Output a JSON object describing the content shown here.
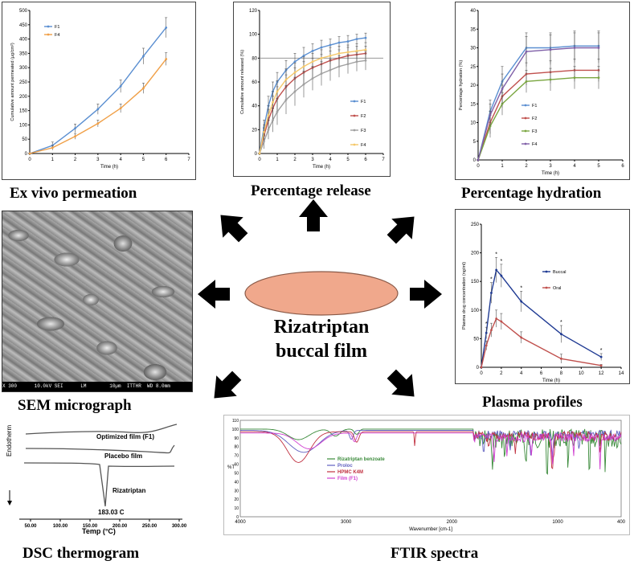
{
  "center": {
    "title_line1": "Rizatriptan",
    "title_line2": "buccal film"
  },
  "colors": {
    "arrow": "#000000",
    "ellipse_fill": "#f0a88c",
    "blue": "#5b8fd1",
    "orange": "#f0a048",
    "green": "#7aa640",
    "purple": "#8060a8",
    "red": "#c0504d",
    "gray": "#a0a0a0",
    "yellow": "#f4c86a",
    "navy": "#1f3a93",
    "magenta": "#d040d0"
  },
  "captions": {
    "ex_vivo": "Ex vivo permeation",
    "release": "Percentage release",
    "hydration": "Percentage hydration",
    "sem": "SEM micrograph",
    "plasma": "Plasma profiles",
    "dsc": "DSC thermogram",
    "ftir": "FTIR spectra"
  },
  "sem": {
    "scale_bar": "X 300      10.0kV SEI      LM        10µm  ITTHR  WD 8.0mm"
  },
  "dsc": {
    "yaxis_label": "Endotherm",
    "curve_labels": [
      "Optimized film (F1)",
      "Placebo film",
      "Rizatriptan"
    ],
    "peak_label": "183.03 C"
  },
  "chart_data": [
    {
      "type": "line",
      "id": "ex_vivo",
      "title": "",
      "xlabel": "Time (h)",
      "ylabel": "Cumulative amount permeated (µg/cm²)",
      "xlim": [
        0,
        7
      ],
      "ylim": [
        0,
        500
      ],
      "xticks": [
        0,
        1,
        2,
        3,
        4,
        5,
        6,
        7
      ],
      "yticks": [
        0,
        50,
        100,
        150,
        200,
        250,
        300,
        350,
        400,
        450,
        500
      ],
      "x": [
        0,
        1,
        2,
        3,
        4,
        5,
        6
      ],
      "series": [
        {
          "name": "F1",
          "values": [
            0,
            28,
            88,
            155,
            235,
            340,
            440
          ],
          "err": [
            0,
            12,
            15,
            18,
            22,
            28,
            35
          ],
          "color": "#5b8fd1"
        },
        {
          "name": "F4",
          "values": [
            0,
            20,
            60,
            105,
            158,
            228,
            330
          ],
          "err": [
            0,
            8,
            10,
            12,
            15,
            18,
            22
          ],
          "color": "#f0a048"
        }
      ]
    },
    {
      "type": "line",
      "id": "release",
      "title": "",
      "xlabel": "Time (h)",
      "ylabel": "Cumulative amount released (%)",
      "xlim": [
        0,
        7
      ],
      "ylim": [
        0,
        120
      ],
      "xticks": [
        0,
        1,
        2,
        3,
        4,
        5,
        6,
        7
      ],
      "yticks": [
        0,
        20,
        40,
        60,
        80,
        100,
        120
      ],
      "hline": 80,
      "x": [
        0,
        0.25,
        0.5,
        0.75,
        1,
        1.5,
        2,
        2.5,
        3,
        3.5,
        4,
        4.5,
        5,
        5.5,
        6
      ],
      "series": [
        {
          "name": "F1",
          "values": [
            0,
            22,
            40,
            52,
            60,
            70,
            77,
            82,
            86,
            89,
            91,
            93,
            94,
            96,
            97
          ],
          "err": [
            0,
            6,
            8,
            8,
            8,
            8,
            7,
            7,
            6,
            6,
            5,
            5,
            5,
            4,
            4
          ],
          "color": "#5b8fd1"
        },
        {
          "name": "F2",
          "values": [
            0,
            15,
            28,
            38,
            46,
            56,
            63,
            68,
            72,
            75,
            78,
            80,
            82,
            83,
            84
          ],
          "err": [
            0,
            6,
            9,
            10,
            10,
            10,
            9,
            9,
            8,
            8,
            8,
            7,
            7,
            7,
            6
          ],
          "color": "#c0504d"
        },
        {
          "name": "F3",
          "values": [
            0,
            10,
            20,
            28,
            35,
            45,
            52,
            58,
            63,
            67,
            70,
            73,
            75,
            77,
            78
          ],
          "err": [
            0,
            6,
            8,
            10,
            11,
            12,
            12,
            11,
            10,
            10,
            9,
            9,
            8,
            8,
            8
          ],
          "color": "#a0a0a0"
        },
        {
          "name": "F4",
          "values": [
            0,
            18,
            32,
            43,
            52,
            62,
            68,
            73,
            77,
            80,
            82,
            84,
            85,
            86,
            87
          ],
          "err": [
            0,
            6,
            8,
            9,
            9,
            9,
            8,
            8,
            7,
            7,
            7,
            6,
            6,
            6,
            6
          ],
          "color": "#f4c86a"
        }
      ]
    },
    {
      "type": "line",
      "id": "hydration",
      "title": "",
      "xlabel": "Time (h)",
      "ylabel": "Percentage hydration (%)",
      "xlim": [
        0,
        6
      ],
      "ylim": [
        0,
        40
      ],
      "xticks": [
        0,
        1,
        2,
        3,
        4,
        5,
        6
      ],
      "yticks": [
        0,
        5,
        10,
        15,
        20,
        25,
        30,
        35,
        40
      ],
      "x": [
        0,
        0.5,
        1,
        2,
        3,
        4,
        5
      ],
      "series": [
        {
          "name": "F1",
          "values": [
            0,
            13,
            21,
            30,
            30,
            30.5,
            30.5
          ],
          "err": [
            0,
            3,
            4,
            4,
            4,
            4,
            4
          ],
          "color": "#5b8fd1"
        },
        {
          "name": "F2",
          "values": [
            0,
            10,
            17,
            23,
            23.5,
            24,
            24
          ],
          "err": [
            0,
            3,
            3,
            3,
            3,
            3,
            3
          ],
          "color": "#c0504d"
        },
        {
          "name": "F3",
          "values": [
            0,
            9,
            15,
            21,
            21.5,
            22,
            22
          ],
          "err": [
            0,
            3,
            3,
            3,
            3,
            3,
            3
          ],
          "color": "#7aa640"
        },
        {
          "name": "F4",
          "values": [
            0,
            12,
            19,
            29,
            29.5,
            30,
            30
          ],
          "err": [
            0,
            3,
            4,
            4,
            4,
            4,
            4
          ],
          "color": "#8060a8"
        }
      ]
    },
    {
      "type": "line",
      "id": "plasma",
      "title": "",
      "xlabel": "Time (h)",
      "ylabel": "Plasma drug concentration (ng/ml)",
      "xlim": [
        0,
        14
      ],
      "ylim": [
        0,
        250
      ],
      "xticks": [
        0,
        2,
        4,
        6,
        8,
        10,
        12,
        14
      ],
      "yticks": [
        0,
        50,
        100,
        150,
        200,
        250
      ],
      "x": [
        0,
        0.5,
        1,
        1.5,
        2,
        4,
        8,
        12
      ],
      "series": [
        {
          "name": "Buccal",
          "values": [
            0,
            60,
            130,
            170,
            160,
            115,
            58,
            18
          ],
          "err": [
            0,
            10,
            18,
            22,
            20,
            18,
            15,
            6
          ],
          "color": "#1f3a93"
        },
        {
          "name": "Oral",
          "values": [
            0,
            38,
            65,
            85,
            80,
            52,
            15,
            3
          ],
          "err": [
            0,
            8,
            12,
            15,
            14,
            10,
            8,
            2
          ],
          "color": "#c0504d"
        }
      ]
    },
    {
      "type": "line",
      "id": "ftir",
      "title": "",
      "xlabel": "Wavenumber [cm-1]",
      "ylabel": "%T",
      "xlim": [
        4000,
        400
      ],
      "ylim": [
        0,
        110
      ],
      "xticks": [
        4000,
        3000,
        2000,
        1000,
        400
      ],
      "xtick_labels": [
        "4000",
        "3000",
        "2000",
        "1000",
        "400"
      ],
      "yticks": [
        0,
        10,
        20,
        30,
        40,
        50,
        60,
        70,
        80,
        90,
        100,
        110
      ],
      "series": [
        {
          "name": "Rizatriptan benzoate",
          "color": "#3a8a3a"
        },
        {
          "name": "Proloc",
          "color": "#6060c0"
        },
        {
          "name": "HPMC K4M",
          "color": "#c03040"
        },
        {
          "name": "Film (F1)",
          "color": "#d040d0"
        }
      ]
    }
  ]
}
